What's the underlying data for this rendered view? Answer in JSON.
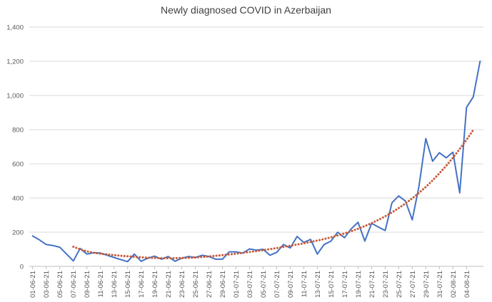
{
  "chart_data": {
    "type": "line",
    "title": "Newly diagnosed COVID in Azerbaijan",
    "xlabel": "",
    "ylabel": "",
    "ylim": [
      0,
      1400
    ],
    "y_ticks": [
      "0",
      "200",
      "400",
      "600",
      "800",
      "1,000",
      "1,200",
      "1,400"
    ],
    "y_tick_values": [
      0,
      200,
      400,
      600,
      800,
      1000,
      1200,
      1400
    ],
    "grid": true,
    "legend": "none",
    "x_tick_labels": [
      "01-06-21",
      "03-06-21",
      "05-06-21",
      "07-06-21",
      "09-06-21",
      "11-06-21",
      "13-06-21",
      "15-06-21",
      "17-06-21",
      "19-06-21",
      "21-06-21",
      "23-06-21",
      "25-06-21",
      "27-06-21",
      "29-06-21",
      "01-07-21",
      "03-07-21",
      "05-07-21",
      "07-07-21",
      "09-07-21",
      "11-07-21",
      "13-07-21",
      "15-07-21",
      "17-07-21",
      "19-07-21",
      "21-07-21",
      "23-07-21",
      "25-07-21",
      "27-07-21",
      "29-07-21",
      "31-07-21",
      "02-08-21",
      "04-08-21"
    ],
    "series": [
      {
        "values": [
          178,
          155,
          128,
          122,
          112,
          72,
          32,
          105,
          72,
          80,
          78,
          65,
          52,
          40,
          28,
          72,
          30,
          48,
          60,
          42,
          58,
          30,
          48,
          58,
          52,
          65,
          58,
          42,
          42,
          85,
          85,
          78,
          102,
          95,
          100,
          65,
          82,
          128,
          108,
          175,
          140,
          158,
          72,
          128,
          148,
          200,
          168,
          220,
          258,
          148,
          252,
          230,
          210,
          372,
          412,
          382,
          272,
          470,
          748,
          615,
          665,
          635,
          668,
          430,
          930,
          992,
          1200
        ],
        "color": "#4472c4",
        "style": "solid"
      },
      {
        "values": [
          null,
          null,
          null,
          null,
          null,
          null,
          115,
          100,
          88,
          80,
          74,
          70,
          66,
          62,
          59,
          56,
          53,
          51,
          49,
          48,
          48,
          48,
          49,
          50,
          52,
          55,
          58,
          62,
          66,
          70,
          74,
          79,
          84,
          89,
          95,
          101,
          107,
          114,
          121,
          128,
          135,
          143,
          151,
          160,
          170,
          181,
          193,
          206,
          220,
          236,
          253,
          272,
          293,
          316,
          341,
          368,
          398,
          430,
          465,
          503,
          544,
          588,
          636,
          687,
          741,
          798
        ],
        "color": "#c55a3b",
        "style": "dotted"
      }
    ]
  }
}
